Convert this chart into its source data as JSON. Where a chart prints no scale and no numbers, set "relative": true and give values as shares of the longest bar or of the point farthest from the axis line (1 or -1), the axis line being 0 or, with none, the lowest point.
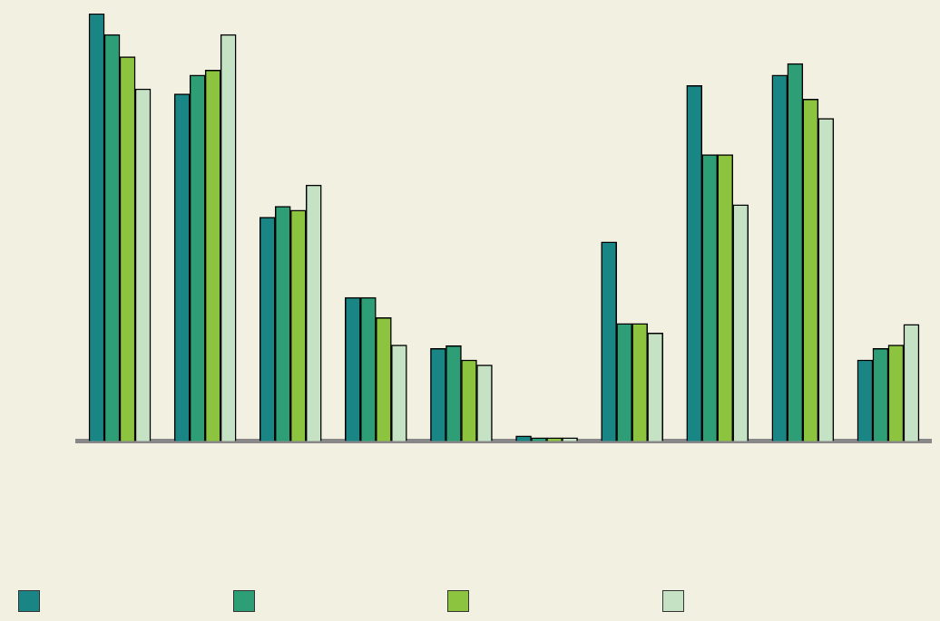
{
  "chart_data": {
    "type": "bar",
    "relative": true,
    "categories": [
      null,
      null,
      null,
      null,
      null,
      null,
      null,
      null,
      null,
      null
    ],
    "series": [
      {
        "color": "#1a8585",
        "values": [
          1.0,
          0.812,
          0.524,
          0.336,
          0.217,
          0.012,
          0.466,
          0.832,
          0.856,
          0.19
        ]
      },
      {
        "color": "#2e9e76",
        "values": [
          0.951,
          0.856,
          0.549,
          0.336,
          0.223,
          0.008,
          0.275,
          0.67,
          0.883,
          0.217
        ]
      },
      {
        "color": "#8cc43f",
        "values": [
          0.899,
          0.868,
          0.54,
          0.289,
          0.19,
          0.008,
          0.275,
          0.67,
          0.8,
          0.225
        ]
      },
      {
        "color": "#c5e3c4",
        "values": [
          0.824,
          0.951,
          0.599,
          0.225,
          0.178,
          0.008,
          0.253,
          0.553,
          0.755,
          0.273
        ]
      }
    ],
    "grid": false
  }
}
